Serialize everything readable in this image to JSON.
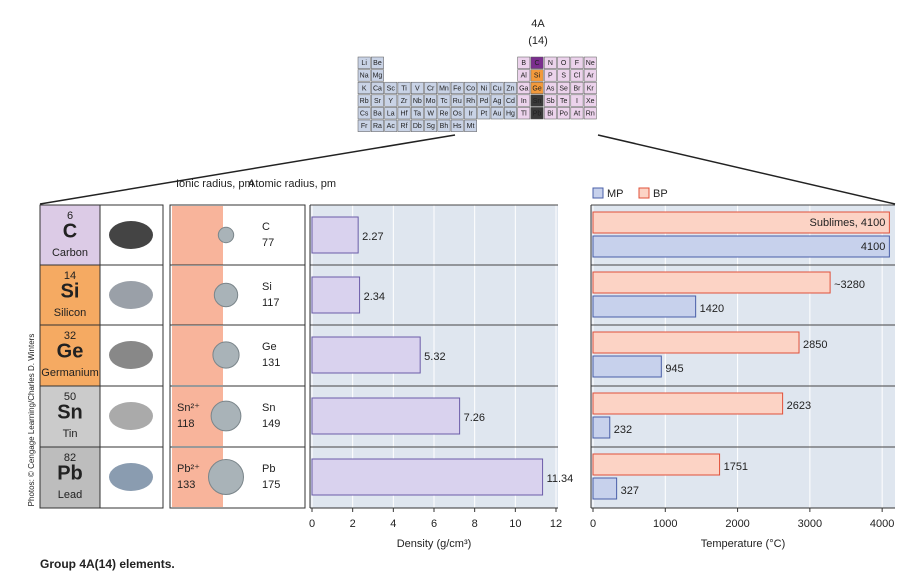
{
  "group_label": {
    "name": "4A",
    "number": "(14)"
  },
  "periodic_table": {
    "rows": [
      [
        "Li",
        "Be",
        null,
        null,
        null,
        null,
        null,
        null,
        null,
        null,
        null,
        null,
        "B",
        "C",
        "N",
        "O",
        "F",
        "Ne"
      ],
      [
        "Na",
        "Mg",
        null,
        null,
        null,
        null,
        null,
        null,
        null,
        null,
        null,
        null,
        "Al",
        "Si",
        "P",
        "S",
        "Cl",
        "Ar"
      ],
      [
        "K",
        "Ca",
        "Sc",
        "Ti",
        "V",
        "Cr",
        "Mn",
        "Fe",
        "Co",
        "Ni",
        "Cu",
        "Zn",
        "Ga",
        "Ge",
        "As",
        "Se",
        "Br",
        "Kr"
      ],
      [
        "Rb",
        "Sr",
        "Y",
        "Zr",
        "Nb",
        "Mo",
        "Tc",
        "Ru",
        "Rh",
        "Pd",
        "Ag",
        "Cd",
        "In",
        "Sn",
        "Sb",
        "Te",
        "I",
        "Xe"
      ],
      [
        "Cs",
        "Ba",
        "La",
        "Hf",
        "Ta",
        "W",
        "Re",
        "Os",
        "Ir",
        "Pt",
        "Au",
        "Hg",
        "Tl",
        "Pb",
        "Bi",
        "Po",
        "At",
        "Rn"
      ],
      [
        "Fr",
        "Ra",
        "Ac",
        "Rf",
        "Db",
        "Sg",
        "Bh",
        "Hs",
        "Mt",
        null,
        null,
        null,
        null,
        null,
        null,
        null,
        null,
        null
      ]
    ],
    "group_colors": [
      "#7b2f8e",
      "#f39a3c",
      "#f39a3c",
      "#3a3a3a",
      "#3a3a3a"
    ]
  },
  "elements": [
    {
      "number": 6,
      "symbol": "C",
      "name": "Carbon",
      "color": "#dccbe6"
    },
    {
      "number": 14,
      "symbol": "Si",
      "name": "Silicon",
      "color": "#f5aa62"
    },
    {
      "number": 32,
      "symbol": "Ge",
      "name": "Germanium",
      "color": "#f5aa62"
    },
    {
      "number": 50,
      "symbol": "Sn",
      "name": "Tin",
      "color": "#cbcbcb"
    },
    {
      "number": 82,
      "symbol": "Pb",
      "name": "Lead",
      "color": "#bdbdbd"
    }
  ],
  "radii": {
    "ionic_header": "Ionic radius, pm",
    "atomic_header": "Atomic radius, pm",
    "ionic": [
      null,
      null,
      null,
      {
        "ion": "Sn²⁺",
        "value": 118
      },
      {
        "ion": "Pb²⁺",
        "value": 133
      }
    ],
    "atomic": [
      {
        "symbol": "C",
        "value": 77
      },
      {
        "symbol": "Si",
        "value": 117
      },
      {
        "symbol": "Ge",
        "value": 131
      },
      {
        "symbol": "Sn",
        "value": 149
      },
      {
        "symbol": "Pb",
        "value": 175
      }
    ]
  },
  "chart_data": [
    {
      "type": "bar",
      "orientation": "horizontal",
      "xlabel": "Density (g/cm³)",
      "values": [
        2.27,
        2.34,
        5.32,
        7.26,
        11.34
      ],
      "color": "#d9d2ee",
      "edge": "#6b5ca8",
      "xlim": [
        0,
        12
      ],
      "xticks": [
        0,
        2,
        4,
        6,
        8,
        10,
        12
      ],
      "grid": true
    },
    {
      "type": "bar",
      "orientation": "horizontal",
      "xlabel": "Temperature (°C)",
      "series": [
        {
          "name": "BP",
          "color": "#fcd3c5",
          "edge": "#e0503a",
          "values": [
            4100,
            3280,
            2850,
            2623,
            1751
          ],
          "value_labels": [
            "Sublimes, 4100",
            "~3280",
            "2850",
            "2623",
            "1751"
          ]
        },
        {
          "name": "MP",
          "color": "#c7d1ec",
          "edge": "#4a5fa8",
          "values": [
            4100,
            1420,
            945,
            232,
            327
          ]
        }
      ],
      "xlim": [
        0,
        4150
      ],
      "xticks": [
        0,
        1000,
        2000,
        3000,
        4000
      ],
      "grid": true,
      "legend": "top-left"
    }
  ],
  "caption": "Group 4A(14) elements.",
  "credit": "Photos: © Cengage Learning/Charles D. Winters"
}
